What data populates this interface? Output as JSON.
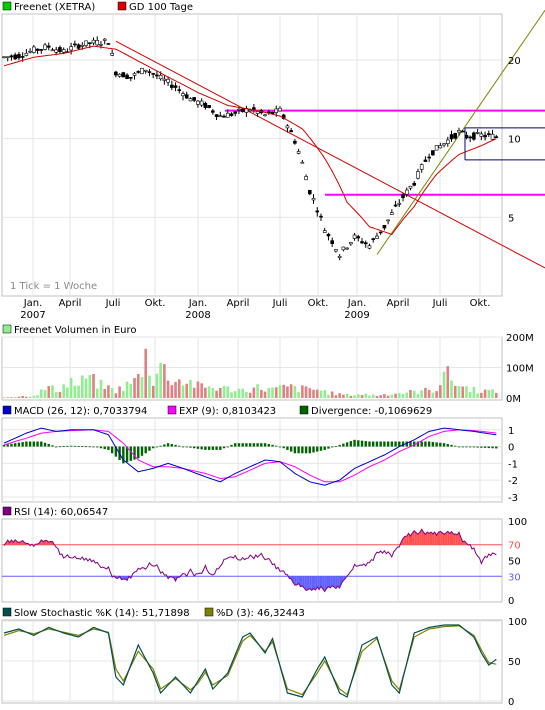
{
  "colors": {
    "price": "#000000",
    "gd100": "#d40000",
    "trendline": "#d40000",
    "support": "#ff00ff",
    "channel": "#000080",
    "uptrend": "#808000",
    "volume_up": "#90ee90",
    "volume_down": "#e08080",
    "macd": "#0000cc",
    "exp": "#ff00ff",
    "divergence": "#006400",
    "rsi": "#800080",
    "rsi_over": "#ff5050",
    "rsi_under": "#6060ff",
    "stoch_k": "#005050",
    "stoch_d": "#808000"
  },
  "chart_data": [
    {
      "type": "candlestick",
      "legend": [
        {
          "name": "Freenet (XETRA)",
          "color": "#00cc00"
        },
        {
          "name": "GD 100 Tage",
          "color": "#d40000"
        }
      ],
      "log_scale": true,
      "yticks": [
        "20",
        "10",
        "5"
      ],
      "ylim": [
        2.5,
        30
      ],
      "xticks": [
        {
          "label": "Jan.",
          "year": "2007"
        },
        {
          "label": "April",
          "year": ""
        },
        {
          "label": "Juli",
          "year": ""
        },
        {
          "label": "Okt.",
          "year": ""
        },
        {
          "label": "Jan.",
          "year": "2008"
        },
        {
          "label": "April",
          "year": ""
        },
        {
          "label": "Juli",
          "year": ""
        },
        {
          "label": "Okt.",
          "year": ""
        },
        {
          "label": "Jan.",
          "year": "2009"
        },
        {
          "label": "April",
          "year": ""
        },
        {
          "label": "Juli",
          "year": ""
        },
        {
          "label": "Okt.",
          "year": ""
        }
      ],
      "note": "1 Tick = 1 Woche",
      "price_anchors": [
        [
          0,
          20.5
        ],
        [
          4,
          20.8
        ],
        [
          8,
          21.8
        ],
        [
          12,
          22.5
        ],
        [
          16,
          21.5
        ],
        [
          20,
          22.8
        ],
        [
          24,
          23.3
        ],
        [
          28,
          23.6
        ],
        [
          30,
          18.0
        ],
        [
          34,
          17.2
        ],
        [
          38,
          18.5
        ],
        [
          42,
          17.0
        ],
        [
          46,
          15.8
        ],
        [
          50,
          14.2
        ],
        [
          54,
          13.4
        ],
        [
          58,
          12.2
        ],
        [
          62,
          12.5
        ],
        [
          66,
          13.0
        ],
        [
          70,
          12.3
        ],
        [
          74,
          12.8
        ],
        [
          78,
          9.8
        ],
        [
          82,
          6.3
        ],
        [
          86,
          4.5
        ],
        [
          90,
          3.6
        ],
        [
          94,
          4.2
        ],
        [
          98,
          3.9
        ],
        [
          102,
          4.6
        ],
        [
          106,
          5.7
        ],
        [
          110,
          6.8
        ],
        [
          114,
          8.7
        ],
        [
          118,
          9.6
        ],
        [
          122,
          10.6
        ],
        [
          124,
          10.2
        ],
        [
          128,
          10.3
        ],
        [
          132,
          10.2
        ]
      ],
      "gd100_anchors": [
        [
          0,
          19.0
        ],
        [
          8,
          20.5
        ],
        [
          16,
          21.2
        ],
        [
          24,
          22.6
        ],
        [
          30,
          22.0
        ],
        [
          36,
          19.8
        ],
        [
          44,
          17.2
        ],
        [
          52,
          15.0
        ],
        [
          60,
          13.4
        ],
        [
          68,
          12.8
        ],
        [
          74,
          12.2
        ],
        [
          80,
          10.9
        ],
        [
          86,
          8.4
        ],
        [
          92,
          5.7
        ],
        [
          98,
          4.6
        ],
        [
          104,
          4.3
        ],
        [
          110,
          5.5
        ],
        [
          116,
          7.3
        ],
        [
          122,
          8.7
        ],
        [
          128,
          9.4
        ],
        [
          132,
          10.0
        ]
      ],
      "levels": {
        "support_upper": 12.8,
        "support_lower": 6.1,
        "channel_upper": 11.0,
        "channel_lower": 8.3
      },
      "downtrend_line": [
        [
          30,
          23.6
        ],
        [
          133,
          3.2
        ]
      ],
      "uptrend_line": [
        [
          100,
          3.6
        ],
        [
          133,
          31.0
        ]
      ]
    },
    {
      "type": "bar",
      "legend": [
        {
          "name": "Freenet Volumen in Euro",
          "color": "#90ee90"
        }
      ],
      "yticks": [
        "200M",
        "100M",
        "0M"
      ],
      "ylim": [
        0,
        200
      ],
      "volume_anchors": [
        [
          0,
          2
        ],
        [
          8,
          8
        ],
        [
          12,
          35
        ],
        [
          14,
          25
        ],
        [
          18,
          55
        ],
        [
          20,
          38
        ],
        [
          22,
          70
        ],
        [
          24,
          55
        ],
        [
          26,
          42
        ],
        [
          30,
          24
        ],
        [
          34,
          48
        ],
        [
          36,
          65
        ],
        [
          38,
          140
        ],
        [
          40,
          60
        ],
        [
          42,
          110
        ],
        [
          44,
          70
        ],
        [
          46,
          58
        ],
        [
          50,
          52
        ],
        [
          52,
          38
        ],
        [
          56,
          35
        ],
        [
          60,
          30
        ],
        [
          64,
          26
        ],
        [
          68,
          34
        ],
        [
          72,
          28
        ],
        [
          76,
          36
        ],
        [
          80,
          30
        ],
        [
          84,
          28
        ],
        [
          88,
          15
        ],
        [
          92,
          10
        ],
        [
          96,
          12
        ],
        [
          100,
          9
        ],
        [
          104,
          14
        ],
        [
          108,
          18
        ],
        [
          112,
          22
        ],
        [
          116,
          30
        ],
        [
          118,
          85
        ],
        [
          120,
          62
        ],
        [
          122,
          40
        ],
        [
          126,
          28
        ],
        [
          130,
          22
        ],
        [
          132,
          18
        ]
      ]
    },
    {
      "type": "line",
      "legend": [
        {
          "name": "MACD (26, 12): 0,7033794",
          "color": "#0000cc"
        },
        {
          "name": "EXP (9): 0,8103423",
          "color": "#ff00ff"
        },
        {
          "name": "Divergence: -0,1069629",
          "color": "#006400"
        }
      ],
      "yticks": [
        "1",
        "0",
        "-1",
        "-2",
        "-3"
      ],
      "ylim": [
        -3.3,
        1.7
      ],
      "macd_anchors": [
        [
          0,
          0.2
        ],
        [
          6,
          0.8
        ],
        [
          10,
          1.1
        ],
        [
          14,
          0.9
        ],
        [
          18,
          1.0
        ],
        [
          24,
          1.0
        ],
        [
          28,
          0.7
        ],
        [
          32,
          -0.8
        ],
        [
          36,
          -1.5
        ],
        [
          40,
          -1.3
        ],
        [
          44,
          -1.0
        ],
        [
          48,
          -1.3
        ],
        [
          54,
          -1.8
        ],
        [
          58,
          -2.1
        ],
        [
          62,
          -1.6
        ],
        [
          66,
          -1.2
        ],
        [
          70,
          -0.8
        ],
        [
          74,
          -0.9
        ],
        [
          78,
          -1.6
        ],
        [
          82,
          -2.1
        ],
        [
          86,
          -2.3
        ],
        [
          90,
          -2.0
        ],
        [
          94,
          -1.3
        ],
        [
          98,
          -0.9
        ],
        [
          102,
          -0.5
        ],
        [
          106,
          0.0
        ],
        [
          110,
          0.4
        ],
        [
          114,
          0.9
        ],
        [
          118,
          1.1
        ],
        [
          122,
          1.0
        ],
        [
          126,
          0.9
        ],
        [
          132,
          0.7
        ]
      ],
      "exp_anchors": [
        [
          0,
          0.1
        ],
        [
          6,
          0.5
        ],
        [
          10,
          0.8
        ],
        [
          14,
          0.9
        ],
        [
          18,
          0.95
        ],
        [
          24,
          1.0
        ],
        [
          28,
          0.9
        ],
        [
          32,
          0.2
        ],
        [
          36,
          -0.8
        ],
        [
          40,
          -1.2
        ],
        [
          44,
          -1.2
        ],
        [
          48,
          -1.3
        ],
        [
          54,
          -1.6
        ],
        [
          58,
          -1.9
        ],
        [
          62,
          -1.8
        ],
        [
          66,
          -1.4
        ],
        [
          70,
          -1.0
        ],
        [
          74,
          -0.9
        ],
        [
          78,
          -1.2
        ],
        [
          82,
          -1.7
        ],
        [
          86,
          -2.1
        ],
        [
          90,
          -2.1
        ],
        [
          94,
          -1.7
        ],
        [
          98,
          -1.2
        ],
        [
          102,
          -0.8
        ],
        [
          106,
          -0.3
        ],
        [
          110,
          0.1
        ],
        [
          114,
          0.6
        ],
        [
          118,
          0.9
        ],
        [
          122,
          1.0
        ],
        [
          126,
          0.95
        ],
        [
          132,
          0.81
        ]
      ]
    },
    {
      "type": "line",
      "legend": [
        {
          "name": "RSI (14): 60,06547",
          "color": "#800080"
        }
      ],
      "yticks": [
        "100",
        "70",
        "50",
        "30",
        "0"
      ],
      "ylim": [
        0,
        100
      ],
      "thresholds": [
        70,
        30
      ],
      "rsi_anchors": [
        [
          0,
          72
        ],
        [
          4,
          74
        ],
        [
          8,
          70
        ],
        [
          12,
          76
        ],
        [
          14,
          68
        ],
        [
          16,
          55
        ],
        [
          20,
          52
        ],
        [
          24,
          48
        ],
        [
          28,
          38
        ],
        [
          30,
          28
        ],
        [
          32,
          25
        ],
        [
          36,
          38
        ],
        [
          40,
          45
        ],
        [
          44,
          30
        ],
        [
          46,
          28
        ],
        [
          50,
          36
        ],
        [
          52,
          32
        ],
        [
          54,
          40
        ],
        [
          56,
          30
        ],
        [
          60,
          55
        ],
        [
          64,
          50
        ],
        [
          68,
          58
        ],
        [
          72,
          48
        ],
        [
          76,
          30
        ],
        [
          78,
          20
        ],
        [
          82,
          12
        ],
        [
          86,
          14
        ],
        [
          90,
          18
        ],
        [
          94,
          42
        ],
        [
          98,
          48
        ],
        [
          100,
          60
        ],
        [
          104,
          58
        ],
        [
          106,
          70
        ],
        [
          108,
          84
        ],
        [
          112,
          86
        ],
        [
          116,
          86
        ],
        [
          120,
          84
        ],
        [
          122,
          82
        ],
        [
          126,
          62
        ],
        [
          128,
          50
        ],
        [
          132,
          60
        ]
      ]
    },
    {
      "type": "line",
      "legend": [
        {
          "name": "Slow Stochastic %K (14): 51,71898",
          "color": "#005050"
        },
        {
          "name": "%D (3): 46,32443",
          "color": "#808000"
        }
      ],
      "yticks": [
        "100",
        "50",
        "0"
      ],
      "ylim": [
        0,
        100
      ],
      "k_anchors": [
        [
          0,
          85
        ],
        [
          4,
          90
        ],
        [
          8,
          82
        ],
        [
          12,
          92
        ],
        [
          16,
          85
        ],
        [
          20,
          80
        ],
        [
          24,
          92
        ],
        [
          28,
          85
        ],
        [
          30,
          30
        ],
        [
          32,
          20
        ],
        [
          36,
          70
        ],
        [
          40,
          35
        ],
        [
          42,
          10
        ],
        [
          46,
          30
        ],
        [
          50,
          10
        ],
        [
          52,
          25
        ],
        [
          54,
          40
        ],
        [
          56,
          15
        ],
        [
          60,
          35
        ],
        [
          64,
          80
        ],
        [
          66,
          85
        ],
        [
          70,
          60
        ],
        [
          72,
          78
        ],
        [
          76,
          10
        ],
        [
          80,
          5
        ],
        [
          84,
          40
        ],
        [
          86,
          55
        ],
        [
          90,
          10
        ],
        [
          92,
          5
        ],
        [
          96,
          70
        ],
        [
          100,
          80
        ],
        [
          104,
          20
        ],
        [
          106,
          10
        ],
        [
          110,
          85
        ],
        [
          114,
          92
        ],
        [
          118,
          95
        ],
        [
          122,
          95
        ],
        [
          126,
          80
        ],
        [
          128,
          60
        ],
        [
          130,
          45
        ],
        [
          132,
          52
        ]
      ],
      "d_anchors": [
        [
          0,
          82
        ],
        [
          4,
          88
        ],
        [
          8,
          84
        ],
        [
          12,
          90
        ],
        [
          16,
          86
        ],
        [
          20,
          82
        ],
        [
          24,
          90
        ],
        [
          28,
          86
        ],
        [
          30,
          40
        ],
        [
          32,
          25
        ],
        [
          36,
          62
        ],
        [
          40,
          40
        ],
        [
          42,
          15
        ],
        [
          46,
          28
        ],
        [
          50,
          14
        ],
        [
          52,
          22
        ],
        [
          54,
          36
        ],
        [
          56,
          20
        ],
        [
          60,
          32
        ],
        [
          64,
          75
        ],
        [
          66,
          82
        ],
        [
          70,
          62
        ],
        [
          72,
          74
        ],
        [
          76,
          15
        ],
        [
          80,
          8
        ],
        [
          84,
          35
        ],
        [
          86,
          50
        ],
        [
          90,
          15
        ],
        [
          92,
          8
        ],
        [
          96,
          62
        ],
        [
          100,
          78
        ],
        [
          104,
          25
        ],
        [
          106,
          14
        ],
        [
          110,
          80
        ],
        [
          114,
          90
        ],
        [
          118,
          93
        ],
        [
          122,
          94
        ],
        [
          126,
          82
        ],
        [
          128,
          64
        ],
        [
          130,
          48
        ],
        [
          132,
          46
        ]
      ]
    }
  ]
}
